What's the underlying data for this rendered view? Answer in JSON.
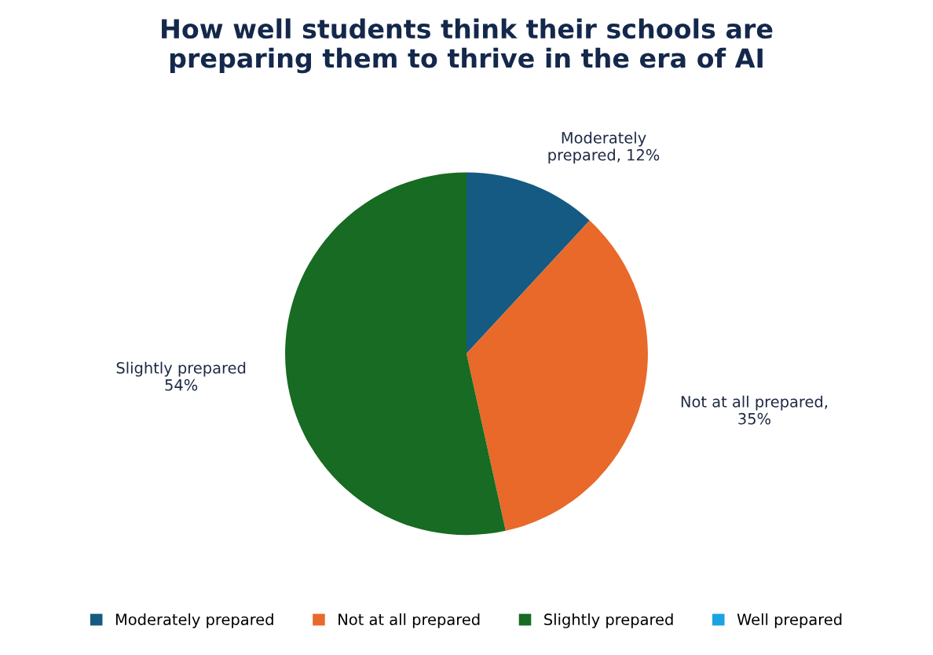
{
  "chart_data": {
    "type": "pie",
    "title": "How well students think their schools are\npreparing them to thrive in the era of AI",
    "categories": [
      "Moderately prepared",
      "Not at all prepared",
      "Slightly prepared",
      "Well prepared"
    ],
    "values": [
      12,
      35,
      54,
      0
    ],
    "colors": [
      "#155a82",
      "#e8692a",
      "#176b22",
      "#1aa3e0"
    ],
    "value_labels": [
      "Moderately\nprepared, 12%",
      "Not at all prepared,\n35%",
      "Slightly prepared\n54%",
      null
    ],
    "legend": "bottom"
  }
}
